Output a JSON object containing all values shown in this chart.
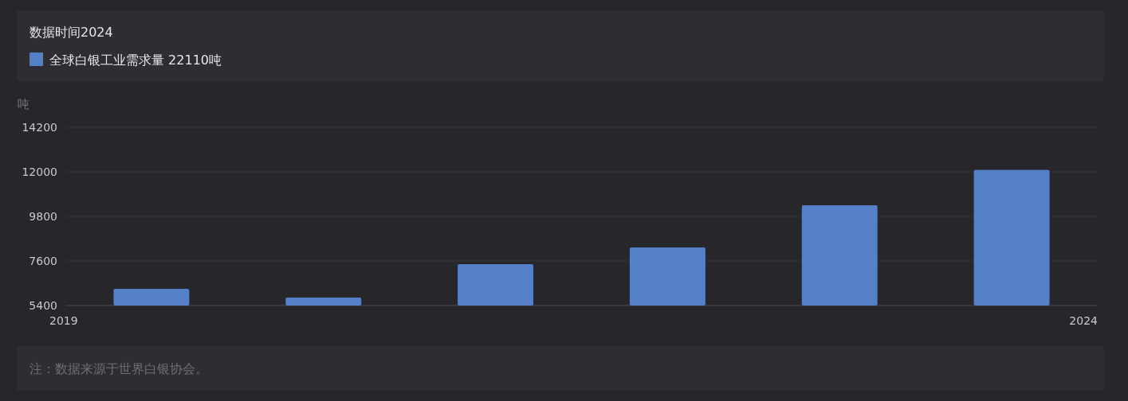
{
  "chart_data": {
    "type": "bar",
    "title": "数据时间2024",
    "ylabel": "吨",
    "categories": [
      "2019",
      null,
      null,
      null,
      null,
      "2024"
    ],
    "series": [
      {
        "name": "全球白银工业需求量",
        "color": "#5580c8",
        "values": [
          6225,
          5793,
          7443,
          8268,
          10350,
          12100
        ]
      }
    ],
    "annotations": [
      "22110吨",
      "注：数据来源于世界白银协会。"
    ],
    "ylim": [
      5400,
      14200
    ],
    "yticks": [
      5400,
      7600,
      9800,
      12000,
      14200
    ],
    "grid": "y",
    "legend": "top left"
  }
}
